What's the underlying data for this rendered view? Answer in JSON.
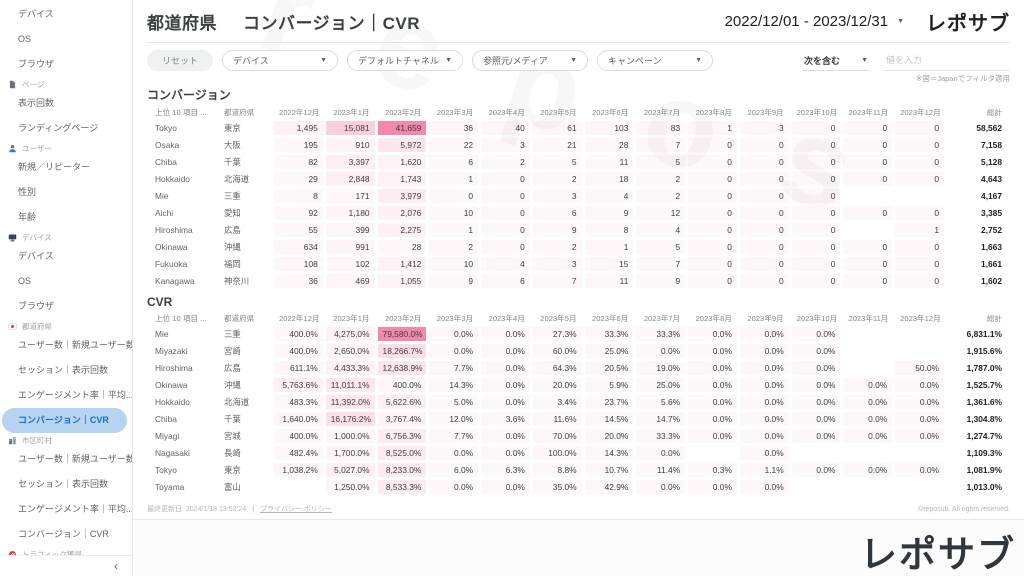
{
  "header": {
    "title_section": "都道府県",
    "title_metric": "コンバージョン｜CVR",
    "date_range": "2022/12/01 - 2023/12/31",
    "logo": "レポサブ"
  },
  "icons": {
    "caret_down": "▼",
    "collapse": "‹"
  },
  "sidebar": {
    "collapse_icon": "‹",
    "items": [
      {
        "type": "item",
        "label": "デバイス"
      },
      {
        "type": "item",
        "label": "OS"
      },
      {
        "type": "item",
        "label": "ブラウザ"
      },
      {
        "type": "section",
        "label": "ページ",
        "icon": "page-icon"
      },
      {
        "type": "item",
        "label": "表示回数"
      },
      {
        "type": "item",
        "label": "ランディングページ"
      },
      {
        "type": "section",
        "label": "ユーザー",
        "icon": "user-icon"
      },
      {
        "type": "item",
        "label": "新規／リピーター"
      },
      {
        "type": "item",
        "label": "性別"
      },
      {
        "type": "item",
        "label": "年齢"
      },
      {
        "type": "section",
        "label": "デバイス",
        "icon": "device-icon"
      },
      {
        "type": "item",
        "label": "デバイス"
      },
      {
        "type": "item",
        "label": "OS"
      },
      {
        "type": "item",
        "label": "ブラウザ"
      },
      {
        "type": "section",
        "label": "都道府県",
        "icon": "japan-flag-icon"
      },
      {
        "type": "item",
        "label": "ユーザー数｜新規ユーザー数"
      },
      {
        "type": "item",
        "label": "セッション｜表示回数"
      },
      {
        "type": "item",
        "label": "エンゲージメント率｜平均..."
      },
      {
        "type": "item",
        "label": "コンバージョン｜CVR",
        "selected": true
      },
      {
        "type": "section",
        "label": "市区町村",
        "icon": "city-icon"
      },
      {
        "type": "item",
        "label": "ユーザー数｜新規ユーザー数"
      },
      {
        "type": "item",
        "label": "セッション｜表示回数"
      },
      {
        "type": "item",
        "label": "エンゲージメント率｜平均..."
      },
      {
        "type": "item",
        "label": "コンバージョン｜CVR"
      },
      {
        "type": "section",
        "label": "トラフィック獲得",
        "icon": "traffic-icon"
      }
    ]
  },
  "filters": {
    "reset_label": "リセット",
    "dropdowns": [
      "デバイス",
      "デフォルトチャネル",
      "参照元/メディア",
      "キャンペーン"
    ],
    "condition_label": "次を含む",
    "value_placeholder": "値を入力",
    "note": "※国＝Japanでフィルタ適用"
  },
  "tables": [
    {
      "title": "コンバージョン",
      "col_item": "上位 10 項目 ...",
      "col_pref": "都道府県",
      "months": [
        "2022年12月",
        "2023年1月",
        "2023年2月",
        "2023年3月",
        "2023年4月",
        "2023年5月",
        "2023年6月",
        "2023年7月",
        "2023年8月",
        "2023年9月",
        "2023年10月",
        "2023年11月",
        "2023年12月"
      ],
      "total_label": "総計",
      "rows": [
        {
          "name": "Tokyo",
          "pref": "東京",
          "values": [
            "1,495",
            "15,081",
            "41,659",
            "36",
            "40",
            "61",
            "103",
            "83",
            "1",
            "3",
            "0",
            "0",
            "0"
          ],
          "total": "58,562"
        },
        {
          "name": "Osaka",
          "pref": "大阪",
          "values": [
            "195",
            "910",
            "5,972",
            "22",
            "3",
            "21",
            "28",
            "7",
            "0",
            "0",
            "0",
            "0",
            "0"
          ],
          "total": "7,158"
        },
        {
          "name": "Chiba",
          "pref": "千葉",
          "values": [
            "82",
            "3,397",
            "1,620",
            "6",
            "2",
            "5",
            "11",
            "5",
            "0",
            "0",
            "0",
            "0",
            "0"
          ],
          "total": "5,128"
        },
        {
          "name": "Hokkaido",
          "pref": "北海道",
          "values": [
            "29",
            "2,848",
            "1,743",
            "1",
            "0",
            "2",
            "18",
            "2",
            "0",
            "0",
            "0",
            "0",
            "0"
          ],
          "total": "4,643"
        },
        {
          "name": "Mie",
          "pref": "三重",
          "values": [
            "8",
            "171",
            "3,979",
            "0",
            "0",
            "3",
            "4",
            "2",
            "0",
            "0",
            "0",
            "",
            ""
          ],
          "total": "4,167"
        },
        {
          "name": "Aichi",
          "pref": "愛知",
          "values": [
            "92",
            "1,180",
            "2,076",
            "10",
            "0",
            "6",
            "9",
            "12",
            "0",
            "0",
            "0",
            "0",
            "0"
          ],
          "total": "3,385"
        },
        {
          "name": "Hiroshima",
          "pref": "広島",
          "values": [
            "55",
            "399",
            "2,275",
            "1",
            "0",
            "9",
            "8",
            "4",
            "0",
            "0",
            "0",
            "",
            "1"
          ],
          "total": "2,752"
        },
        {
          "name": "Okinawa",
          "pref": "沖縄",
          "values": [
            "634",
            "991",
            "28",
            "2",
            "0",
            "2",
            "1",
            "5",
            "0",
            "0",
            "0",
            "0",
            "0"
          ],
          "total": "1,663"
        },
        {
          "name": "Fukuoka",
          "pref": "福岡",
          "values": [
            "108",
            "102",
            "1,412",
            "10",
            "4",
            "3",
            "15",
            "7",
            "0",
            "0",
            "0",
            "0",
            "0"
          ],
          "total": "1,661"
        },
        {
          "name": "Kanagawa",
          "pref": "神奈川",
          "values": [
            "36",
            "469",
            "1,055",
            "9",
            "6",
            "7",
            "11",
            "9",
            "0",
            "0",
            "0",
            "0",
            "0"
          ],
          "total": "1,602"
        }
      ]
    },
    {
      "title": "CVR",
      "col_item": "上位 10 項目 ...",
      "col_pref": "都道府県",
      "months": [
        "2022年12月",
        "2023年1月",
        "2023年2月",
        "2023年3月",
        "2023年4月",
        "2023年5月",
        "2023年6月",
        "2023年7月",
        "2023年8月",
        "2023年9月",
        "2023年10月",
        "2023年11月",
        "2023年12月"
      ],
      "total_label": "総計",
      "rows": [
        {
          "name": "Mie",
          "pref": "三重",
          "values": [
            "400.0%",
            "4,275.0%",
            "79,580.0%",
            "0.0%",
            "0.0%",
            "27.3%",
            "33.3%",
            "33.3%",
            "0.0%",
            "0.0%",
            "0.0%",
            "",
            ""
          ],
          "total": "6,831.1%"
        },
        {
          "name": "Miyazaki",
          "pref": "宮崎",
          "values": [
            "400.0%",
            "2,650.0%",
            "18,266.7%",
            "0.0%",
            "0.0%",
            "60.0%",
            "25.0%",
            "0.0%",
            "0.0%",
            "0.0%",
            "0.0%",
            "",
            ""
          ],
          "total": "1,915.6%"
        },
        {
          "name": "Hiroshima",
          "pref": "広島",
          "values": [
            "611.1%",
            "4,433.3%",
            "12,638.9%",
            "7.7%",
            "0.0%",
            "64.3%",
            "20.5%",
            "19.0%",
            "0.0%",
            "0.0%",
            "0.0%",
            "",
            "50.0%"
          ],
          "total": "1,787.0%"
        },
        {
          "name": "Okinawa",
          "pref": "沖縄",
          "values": [
            "5,763.6%",
            "11,011.1%",
            "400.0%",
            "14.3%",
            "0.0%",
            "20.0%",
            "5.9%",
            "25.0%",
            "0.0%",
            "0.0%",
            "0.0%",
            "0.0%",
            "0.0%"
          ],
          "total": "1,525.7%"
        },
        {
          "name": "Hokkaido",
          "pref": "北海道",
          "values": [
            "483.3%",
            "11,392.0%",
            "5,622.6%",
            "5.0%",
            "0.0%",
            "3.4%",
            "23.7%",
            "5.6%",
            "0.0%",
            "0.0%",
            "0.0%",
            "0.0%",
            "0.0%"
          ],
          "total": "1,361.6%"
        },
        {
          "name": "Chiba",
          "pref": "千葉",
          "values": [
            "1,640.0%",
            "16,176.2%",
            "3,767.4%",
            "12.0%",
            "3.6%",
            "11.6%",
            "14.5%",
            "14.7%",
            "0.0%",
            "0.0%",
            "0.0%",
            "0.0%",
            "0.0%"
          ],
          "total": "1,304.8%"
        },
        {
          "name": "Miyagi",
          "pref": "宮城",
          "values": [
            "400.0%",
            "1,000.0%",
            "6,756.3%",
            "7.7%",
            "0.0%",
            "70.0%",
            "20.0%",
            "33.3%",
            "0.0%",
            "0.0%",
            "0.0%",
            "0.0%",
            "0.0%"
          ],
          "total": "1,274.7%"
        },
        {
          "name": "Nagasaki",
          "pref": "長崎",
          "values": [
            "482.4%",
            "1,700.0%",
            "8,525.0%",
            "0.0%",
            "0.0%",
            "100.0%",
            "14.3%",
            "0.0%",
            "",
            "0.0%",
            "",
            "",
            ""
          ],
          "total": "1,109.3%"
        },
        {
          "name": "Tokyo",
          "pref": "東京",
          "values": [
            "1,038.2%",
            "5,027.0%",
            "8,233.0%",
            "6.0%",
            "6.3%",
            "8.8%",
            "10.7%",
            "11.4%",
            "0.3%",
            "1.1%",
            "0.0%",
            "0.0%",
            "0.0%"
          ],
          "total": "1,081.9%"
        },
        {
          "name": "Toyama",
          "pref": "富山",
          "values": [
            "",
            "1,250.0%",
            "8,533.3%",
            "0.0%",
            "0.0%",
            "35.0%",
            "42.9%",
            "0.0%",
            "0.0%",
            "0.0%",
            "",
            "",
            ""
          ],
          "total": "1,013.0%"
        }
      ]
    }
  ],
  "footer": {
    "last_updated": "最終更新日: 2024/1/18 13:52:24",
    "separator": "|",
    "privacy_link": "プライバシー ポリシー",
    "copyright": "©reposub. All rights reserved.",
    "logo": "レポサブ"
  },
  "watermark": {
    "letters": "repos"
  },
  "colors": {
    "heat_rgb": "236,64,122",
    "selected_bg": "#b6d4ef",
    "selected_text": "#1b6ec2"
  }
}
